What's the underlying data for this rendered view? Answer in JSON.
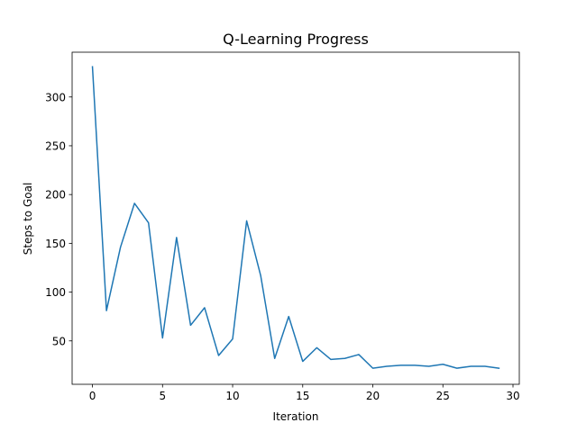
{
  "chart_data": {
    "type": "line",
    "title": "Q-Learning Progress",
    "xlabel": "Iteration",
    "ylabel": "Steps to Goal",
    "xlim": [
      -1.45,
      30.45
    ],
    "ylim": [
      5.5,
      345.9
    ],
    "xticks": [
      0,
      5,
      10,
      15,
      20,
      25,
      30
    ],
    "yticks": [
      50,
      100,
      150,
      200,
      250,
      300
    ],
    "grid": false,
    "series": [
      {
        "color": "#1f77b4",
        "x": [
          0,
          1,
          2,
          3,
          4,
          5,
          6,
          7,
          8,
          9,
          10,
          11,
          12,
          13,
          14,
          15,
          16,
          17,
          18,
          19,
          20,
          21,
          22,
          23,
          24,
          25,
          26,
          27,
          28,
          29
        ],
        "values": [
          331,
          81,
          146,
          191,
          171,
          53,
          156,
          66,
          84,
          35,
          52,
          173,
          117,
          32,
          75,
          29,
          43,
          31,
          32,
          36,
          22,
          24,
          25,
          25,
          24,
          26,
          22,
          24,
          24,
          22
        ]
      }
    ]
  }
}
